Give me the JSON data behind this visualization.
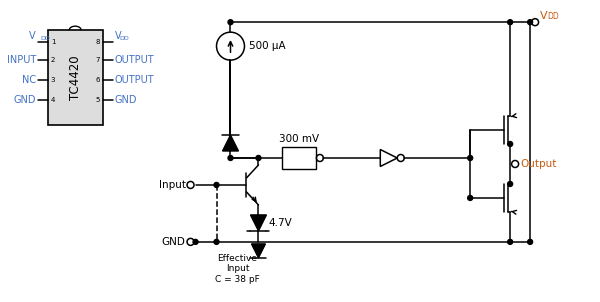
{
  "bg_color": "#ffffff",
  "line_color": "#000000",
  "blue": "#4472c4",
  "orange": "#c55a11",
  "current_source_label": "500 μA",
  "schmitt_label": "300 mV",
  "zener_label": "4.7V",
  "effective_label": "Effective\nInput\nC = 38 pF",
  "output_terminal": "Output",
  "vdd_terminal": "V",
  "vdd_sub": "DD"
}
